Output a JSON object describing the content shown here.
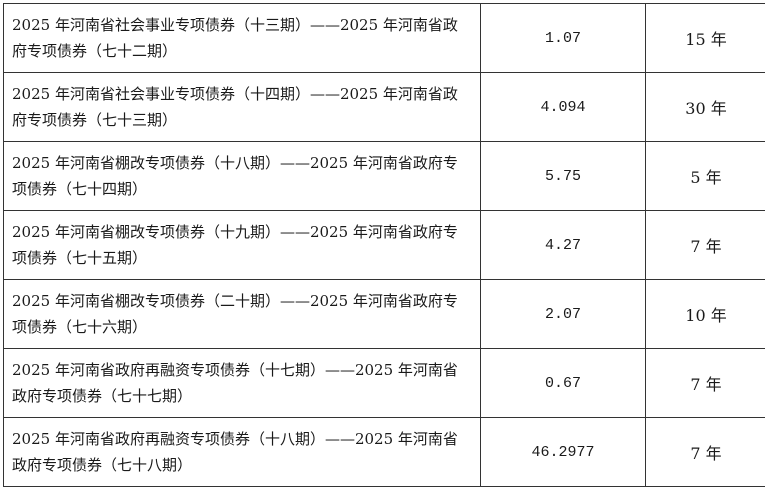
{
  "rows": [
    {
      "name": "2025 年河南省社会事业专项债券（十三期）——2025 年河南省政府专项债券（七十二期）",
      "amount": "1.07",
      "term": "15 年"
    },
    {
      "name": "2025 年河南省社会事业专项债券（十四期）——2025 年河南省政府专项债券（七十三期）",
      "amount": "4.094",
      "term": "30 年"
    },
    {
      "name": "2025 年河南省棚改专项债券（十八期）——2025 年河南省政府专项债券（七十四期）",
      "amount": "5.75",
      "term": "5 年"
    },
    {
      "name": "2025 年河南省棚改专项债券（十九期）——2025 年河南省政府专项债券（七十五期）",
      "amount": "4.27",
      "term": "7 年"
    },
    {
      "name": "2025 年河南省棚改专项债券（二十期）——2025 年河南省政府专项债券（七十六期）",
      "amount": "2.07",
      "term": "10 年"
    },
    {
      "name": "2025 年河南省政府再融资专项债券（十七期）——2025 年河南省政府专项债券（七十七期）",
      "amount": "0.67",
      "term": "7 年"
    },
    {
      "name": "2025 年河南省政府再融资专项债券（十八期）——2025 年河南省政府专项债券（七十八期）",
      "amount": "46.2977",
      "term": "7 年"
    }
  ]
}
